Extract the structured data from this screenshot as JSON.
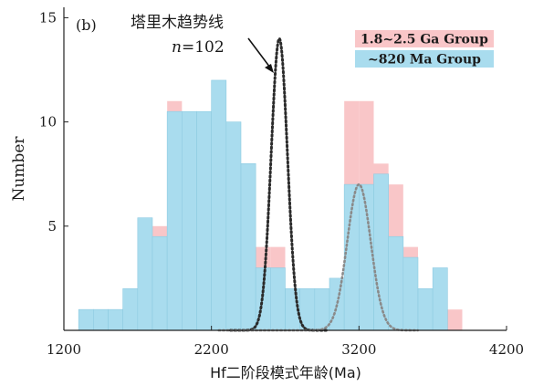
{
  "chart_data": {
    "type": "bar",
    "panel_label": "(b)",
    "xlabel": "Hf二阶段模式年龄(Ma)",
    "ylabel": "Number",
    "xlim": [
      1200,
      4200
    ],
    "ylim": [
      0,
      15.5
    ],
    "xticks": [
      1200,
      2200,
      3200,
      4200
    ],
    "yticks": [
      5,
      10,
      15
    ],
    "bin_width": 100,
    "legend_position": "top-right",
    "series": [
      {
        "name": "1.8~2.5 Ga Group",
        "color": "#f9c6c8",
        "bins": [
          {
            "x0": 1800,
            "value": 5
          },
          {
            "x0": 1900,
            "value": 11
          },
          {
            "x0": 2500,
            "value": 4
          },
          {
            "x0": 2600,
            "value": 4
          },
          {
            "x0": 2700,
            "value": 2
          },
          {
            "x0": 2800,
            "value": 2
          },
          {
            "x0": 2900,
            "value": 2
          },
          {
            "x0": 3000,
            "value": 2
          },
          {
            "x0": 3100,
            "value": 11
          },
          {
            "x0": 3200,
            "value": 11
          },
          {
            "x0": 3300,
            "value": 8
          },
          {
            "x0": 3400,
            "value": 7
          },
          {
            "x0": 3500,
            "value": 4
          },
          {
            "x0": 3600,
            "value": 2
          },
          {
            "x0": 3700,
            "value": 2
          },
          {
            "x0": 3800,
            "value": 1
          }
        ]
      },
      {
        "name": "~820 Ma Group",
        "color": "#a9dcee",
        "bins": [
          {
            "x0": 1300,
            "value": 1
          },
          {
            "x0": 1400,
            "value": 1
          },
          {
            "x0": 1500,
            "value": 1
          },
          {
            "x0": 1600,
            "value": 2
          },
          {
            "x0": 1700,
            "value": 5.4
          },
          {
            "x0": 1800,
            "value": 4.5
          },
          {
            "x0": 1900,
            "value": 10.5
          },
          {
            "x0": 2000,
            "value": 10.5
          },
          {
            "x0": 2100,
            "value": 10.5
          },
          {
            "x0": 2200,
            "value": 12
          },
          {
            "x0": 2300,
            "value": 10
          },
          {
            "x0": 2400,
            "value": 8
          },
          {
            "x0": 2500,
            "value": 3
          },
          {
            "x0": 2600,
            "value": 3
          },
          {
            "x0": 2700,
            "value": 2
          },
          {
            "x0": 2800,
            "value": 2
          },
          {
            "x0": 2900,
            "value": 2
          },
          {
            "x0": 3000,
            "value": 2.5
          },
          {
            "x0": 3100,
            "value": 7
          },
          {
            "x0": 3200,
            "value": 7
          },
          {
            "x0": 3300,
            "value": 7.5
          },
          {
            "x0": 3400,
            "value": 4.5
          },
          {
            "x0": 3500,
            "value": 3.5
          },
          {
            "x0": 3600,
            "value": 2
          },
          {
            "x0": 3700,
            "value": 3
          },
          {
            "x0": 3800,
            "value": 0
          }
        ]
      }
    ],
    "curves": [
      {
        "name": "trend-peak",
        "style": "dotted",
        "color": "#2b2b2b",
        "amplitude": 14,
        "mean": 2660,
        "sigma": 55
      },
      {
        "name": "trend-secondary",
        "style": "dotted",
        "color": "#8a8a8a",
        "amplitude": 7,
        "mean": 3200,
        "sigma": 80,
        "x_range": [
          2250,
          3600
        ]
      }
    ],
    "annotation": {
      "title": "塔里木趋势线",
      "n_label": "n",
      "n_value": "=102"
    }
  }
}
